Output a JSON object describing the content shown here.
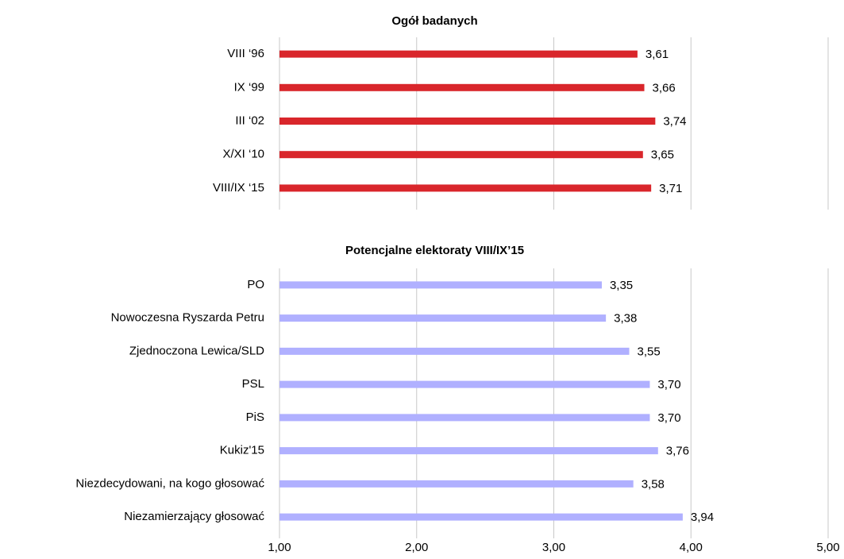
{
  "chart_data": [
    {
      "type": "bar",
      "orientation": "horizontal",
      "title": "Ogół badanych",
      "categories": [
        "VIII ‘96",
        "IX ‘99",
        "III ‘02",
        "X/XI ‘10",
        "VIII/IX ‘15"
      ],
      "values": [
        3.61,
        3.66,
        3.74,
        3.65,
        3.71
      ],
      "value_labels": [
        "3,61",
        "3,66",
        "3,74",
        "3,65",
        "3,71"
      ],
      "color": "#d9262b",
      "xlim": [
        1,
        5
      ],
      "xticks": [
        1,
        2,
        3,
        4,
        5
      ],
      "grid": true
    },
    {
      "type": "bar",
      "orientation": "horizontal",
      "title": "Potencjalne elektoraty VIII/IX’15",
      "categories": [
        "PO",
        "Nowoczesna Ryszarda Petru",
        "Zjednoczona Lewica/SLD",
        "PSL",
        "PiS",
        "Kukiz'15",
        "Niezdecydowani, na kogo głosować",
        "Niezamierzający głosować"
      ],
      "values": [
        3.35,
        3.38,
        3.55,
        3.7,
        3.7,
        3.76,
        3.58,
        3.94
      ],
      "value_labels": [
        "3,35",
        "3,38",
        "3,55",
        "3,70",
        "3,70",
        "3,76",
        "3,58",
        "3,94"
      ],
      "color": "#b0b0ff",
      "xlim": [
        1,
        5
      ],
      "xticks": [
        {
          "value": 1,
          "label": "1,00"
        },
        {
          "value": 2,
          "label": "2,00"
        },
        {
          "value": 3,
          "label": "3,00"
        },
        {
          "value": 4,
          "label": "4,00"
        },
        {
          "value": 5,
          "label": "5,00"
        }
      ],
      "grid": true
    }
  ]
}
